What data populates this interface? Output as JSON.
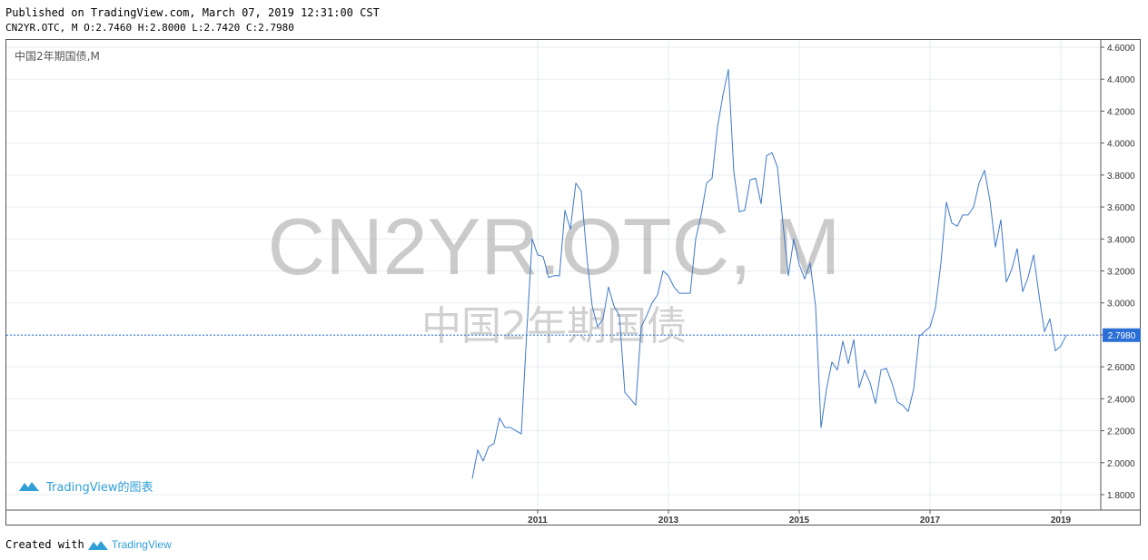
{
  "header": {
    "published": "Published on TradingView.com, March 07, 2019 12:31:00 CST",
    "ohlc": "CN2YR.OTC, M O:2.7460 H:2.8000 L:2.7420 C:2.7980"
  },
  "pane": {
    "legend": "中国2年期国债,M",
    "watermark_symbol": "CN2YR.OTC, M",
    "watermark_name": "中国2年期国债",
    "logo_text": "TradingView的图表"
  },
  "footer": {
    "created_with": "Created with",
    "brand": "TradingView"
  },
  "colors": {
    "line": "#3d78c8",
    "price_label_bg": "#2a6fd6",
    "grid": "#e6edf3",
    "watermark": "rgba(140,140,140,0.45)",
    "logo": "#2f9fd8"
  },
  "chart_data": {
    "type": "line",
    "title": "中国2年期国债,M",
    "xlabel": "",
    "ylabel": "",
    "ylim": [
      1.7,
      4.65
    ],
    "y_ticks": [
      "1.8000",
      "2.0000",
      "2.2000",
      "2.4000",
      "2.6000",
      "2.8000",
      "3.0000",
      "3.2000",
      "3.4000",
      "3.6000",
      "3.8000",
      "4.0000",
      "4.2000",
      "4.4000",
      "4.6000"
    ],
    "x_ticks": [
      "2011",
      "2013",
      "2015",
      "2017",
      "2019"
    ],
    "last_price": "2.7980",
    "last_value": 2.798,
    "grid": true,
    "series": [
      {
        "x_start": "2010-01",
        "frequency": "monthly",
        "values": [
          1.9,
          2.08,
          2.01,
          2.1,
          2.12,
          2.28,
          2.22,
          2.22,
          2.2,
          2.18,
          2.82,
          3.4,
          3.3,
          3.29,
          3.16,
          3.17,
          3.17,
          3.58,
          3.46,
          3.75,
          3.7,
          3.3,
          2.98,
          2.85,
          2.9,
          3.1,
          2.98,
          2.92,
          2.44,
          2.4,
          2.36,
          2.85,
          2.92,
          3.0,
          3.05,
          3.2,
          3.17,
          3.1,
          3.06,
          3.06,
          3.06,
          3.4,
          3.55,
          3.75,
          3.78,
          4.1,
          4.3,
          4.46,
          3.82,
          3.57,
          3.58,
          3.77,
          3.78,
          3.62,
          3.92,
          3.94,
          3.85,
          3.5,
          3.17,
          3.4,
          3.24,
          3.15,
          3.25,
          2.98,
          2.22,
          2.46,
          2.63,
          2.58,
          2.76,
          2.62,
          2.77,
          2.47,
          2.58,
          2.5,
          2.37,
          2.58,
          2.59,
          2.5,
          2.38,
          2.36,
          2.32,
          2.46,
          2.79,
          2.82,
          2.85,
          2.97,
          3.25,
          3.63,
          3.5,
          3.48,
          3.55,
          3.55,
          3.6,
          3.75,
          3.83,
          3.64,
          3.35,
          3.52,
          3.13,
          3.21,
          3.34,
          3.07,
          3.16,
          3.3,
          3.05,
          2.82,
          2.9,
          2.7,
          2.73,
          2.798
        ]
      }
    ]
  }
}
